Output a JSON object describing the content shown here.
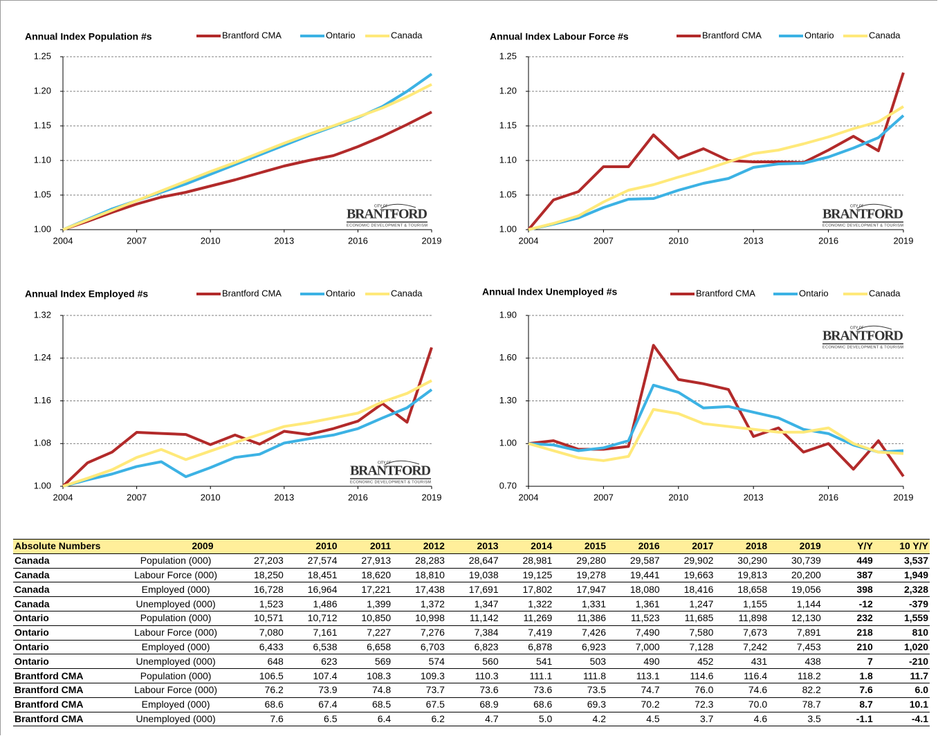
{
  "chart_data": [
    {
      "type": "line",
      "title": "Annual Index Population #s",
      "x": [
        2004,
        2005,
        2006,
        2007,
        2008,
        2009,
        2010,
        2011,
        2012,
        2013,
        2014,
        2015,
        2016,
        2017,
        2018,
        2019
      ],
      "xlim": [
        2004,
        2019
      ],
      "xticks": [
        2004,
        2007,
        2010,
        2013,
        2016,
        2019
      ],
      "ylim": [
        1,
        1.25
      ],
      "yticks": [
        {
          "value": 1,
          "label": "1.00"
        },
        1.05,
        {
          "value": 1.1,
          "label": "1.10"
        },
        1.15,
        {
          "value": 1.2,
          "label": "1.20"
        },
        1.25
      ],
      "grid": true,
      "series": [
        {
          "name": "Brantford CMA",
          "color": "#b22a2a",
          "values": [
            1.0,
            1.012,
            1.025,
            1.037,
            1.047,
            1.054,
            1.063,
            1.072,
            1.082,
            1.092,
            1.1,
            1.107,
            1.12,
            1.135,
            1.152,
            1.17
          ]
        },
        {
          "name": "Ontario",
          "color": "#3cb2e4",
          "values": [
            1.0,
            1.015,
            1.03,
            1.042,
            1.054,
            1.066,
            1.08,
            1.094,
            1.108,
            1.122,
            1.136,
            1.149,
            1.162,
            1.178,
            1.2,
            1.225
          ]
        },
        {
          "name": "Canada",
          "color": "#ffe97a",
          "values": [
            1.0,
            1.014,
            1.028,
            1.042,
            1.056,
            1.07,
            1.084,
            1.097,
            1.111,
            1.125,
            1.138,
            1.15,
            1.163,
            1.176,
            1.192,
            1.21
          ]
        }
      ]
    },
    {
      "type": "line",
      "title": "Annual Index Labour Force #s",
      "x": [
        2004,
        2005,
        2006,
        2007,
        2008,
        2009,
        2010,
        2011,
        2012,
        2013,
        2014,
        2015,
        2016,
        2017,
        2018,
        2019
      ],
      "xlim": [
        2004,
        2019
      ],
      "xticks": [
        2004,
        2007,
        2010,
        2013,
        2016,
        2019
      ],
      "ylim": [
        1,
        1.25
      ],
      "yticks": [
        {
          "value": 1,
          "label": "1.00"
        },
        1.05,
        {
          "value": 1.1,
          "label": "1.10"
        },
        1.15,
        {
          "value": 1.2,
          "label": "1.20"
        },
        1.25
      ],
      "grid": true,
      "series": [
        {
          "name": "Brantford CMA",
          "color": "#b22a2a",
          "values": [
            1.0,
            1.043,
            1.055,
            1.091,
            1.091,
            1.137,
            1.103,
            1.117,
            1.1,
            1.098,
            1.098,
            1.097,
            1.115,
            1.135,
            1.114,
            1.227
          ]
        },
        {
          "name": "Ontario",
          "color": "#3cb2e4",
          "values": [
            1.0,
            1.008,
            1.017,
            1.032,
            1.044,
            1.045,
            1.057,
            1.067,
            1.074,
            1.09,
            1.095,
            1.096,
            1.105,
            1.118,
            1.133,
            1.165
          ]
        },
        {
          "name": "Canada",
          "color": "#ffe97a",
          "values": [
            1.0,
            1.009,
            1.02,
            1.04,
            1.057,
            1.065,
            1.076,
            1.086,
            1.098,
            1.11,
            1.115,
            1.124,
            1.134,
            1.146,
            1.156,
            1.178
          ]
        }
      ]
    },
    {
      "type": "line",
      "title": "Annual Index Employed #s",
      "x": [
        2004,
        2005,
        2006,
        2007,
        2008,
        2009,
        2010,
        2011,
        2012,
        2013,
        2014,
        2015,
        2016,
        2017,
        2018,
        2019
      ],
      "xlim": [
        2004,
        2019
      ],
      "xticks": [
        2004,
        2007,
        2010,
        2013,
        2016,
        2019
      ],
      "ylim": [
        1,
        1.32
      ],
      "yticks": [
        {
          "value": 1,
          "label": "1.00"
        },
        1.08,
        1.16,
        1.24,
        1.32
      ],
      "grid": true,
      "series": [
        {
          "name": "Brantford CMA",
          "color": "#b22a2a",
          "values": [
            1.0,
            1.044,
            1.064,
            1.101,
            1.099,
            1.097,
            1.078,
            1.096,
            1.079,
            1.103,
            1.097,
            1.108,
            1.122,
            1.155,
            1.12,
            1.26
          ]
        },
        {
          "name": "Ontario",
          "color": "#3cb2e4",
          "values": [
            1.0,
            1.012,
            1.023,
            1.037,
            1.046,
            1.018,
            1.035,
            1.054,
            1.06,
            1.081,
            1.089,
            1.096,
            1.108,
            1.128,
            1.147,
            1.181
          ]
        },
        {
          "name": "Canada",
          "color": "#ffe97a",
          "values": [
            1.0,
            1.015,
            1.031,
            1.054,
            1.069,
            1.05,
            1.066,
            1.082,
            1.097,
            1.112,
            1.119,
            1.128,
            1.137,
            1.158,
            1.174,
            1.198
          ]
        }
      ]
    },
    {
      "type": "line",
      "title": "Annual Index Unemployed #s",
      "x": [
        2004,
        2005,
        2006,
        2007,
        2008,
        2009,
        2010,
        2011,
        2012,
        2013,
        2014,
        2015,
        2016,
        2017,
        2018,
        2019
      ],
      "xlim": [
        2004,
        2019
      ],
      "xticks": [
        2004,
        2007,
        2010,
        2013,
        2016,
        2019
      ],
      "ylim": [
        0.7,
        1.9
      ],
      "yticks": [
        {
          "value": 0.7,
          "label": "0.70"
        },
        {
          "value": 1,
          "label": "1.00"
        },
        {
          "value": 1.3,
          "label": "1.30"
        },
        {
          "value": 1.6,
          "label": "1.60"
        },
        {
          "value": 1.9,
          "label": "1.90"
        }
      ],
      "grid": true,
      "series": [
        {
          "name": "Brantford CMA",
          "color": "#b22a2a",
          "values": [
            1.0,
            1.02,
            0.96,
            0.96,
            0.98,
            1.69,
            1.45,
            1.42,
            1.38,
            1.05,
            1.11,
            0.94,
            1.0,
            0.82,
            1.02,
            0.77
          ]
        },
        {
          "name": "Ontario",
          "color": "#3cb2e4",
          "values": [
            1.0,
            0.99,
            0.95,
            0.97,
            1.02,
            1.41,
            1.36,
            1.25,
            1.26,
            1.22,
            1.18,
            1.1,
            1.07,
            0.99,
            0.94,
            0.95
          ]
        },
        {
          "name": "Canada",
          "color": "#ffe97a",
          "values": [
            1.0,
            0.95,
            0.9,
            0.88,
            0.91,
            1.24,
            1.21,
            1.14,
            1.12,
            1.1,
            1.08,
            1.08,
            1.11,
            1.0,
            0.94,
            0.93
          ]
        }
      ]
    }
  ],
  "logo": {
    "city": "CITY OF",
    "name": "BRANTFORD",
    "tag": "ECONOMIC DEVELOPMENT & TOURISM"
  },
  "table": {
    "header": [
      "Absolute Numbers",
      "2009",
      "2010",
      "2011",
      "2012",
      "2013",
      "2014",
      "2015",
      "2016",
      "2017",
      "2018",
      "2019",
      "Y/Y",
      "10 Y/Y"
    ],
    "rows": [
      [
        "Canada",
        "Population (000)",
        "27,203",
        "27,574",
        "27,913",
        "28,283",
        "28,647",
        "28,981",
        "29,280",
        "29,587",
        "29,902",
        "30,290",
        "30,739",
        "449",
        "3,537"
      ],
      [
        "Canada",
        "Labour Force (000)",
        "18,250",
        "18,451",
        "18,620",
        "18,810",
        "19,038",
        "19,125",
        "19,278",
        "19,441",
        "19,663",
        "19,813",
        "20,200",
        "387",
        "1,949"
      ],
      [
        "Canada",
        "Employed (000)",
        "16,728",
        "16,964",
        "17,221",
        "17,438",
        "17,691",
        "17,802",
        "17,947",
        "18,080",
        "18,416",
        "18,658",
        "19,056",
        "398",
        "2,328"
      ],
      [
        "Canada",
        "Unemployed (000)",
        "1,523",
        "1,486",
        "1,399",
        "1,372",
        "1,347",
        "1,322",
        "1,331",
        "1,361",
        "1,247",
        "1,155",
        "1,144",
        "-12",
        "-379"
      ],
      [
        "Ontario",
        "Population (000)",
        "10,571",
        "10,712",
        "10,850",
        "10,998",
        "11,142",
        "11,269",
        "11,386",
        "11,523",
        "11,685",
        "11,898",
        "12,130",
        "232",
        "1,559"
      ],
      [
        "Ontario",
        "Labour Force (000)",
        "7,080",
        "7,161",
        "7,227",
        "7,276",
        "7,384",
        "7,419",
        "7,426",
        "7,490",
        "7,580",
        "7,673",
        "7,891",
        "218",
        "810"
      ],
      [
        "Ontario",
        "Employed (000)",
        "6,433",
        "6,538",
        "6,658",
        "6,703",
        "6,823",
        "6,878",
        "6,923",
        "7,000",
        "7,128",
        "7,242",
        "7,453",
        "210",
        "1,020"
      ],
      [
        "Ontario",
        "Unemployed (000)",
        "648",
        "623",
        "569",
        "574",
        "560",
        "541",
        "503",
        "490",
        "452",
        "431",
        "438",
        "7",
        "-210"
      ],
      [
        "Brantford CMA",
        "Population (000)",
        "106.5",
        "107.4",
        "108.3",
        "109.3",
        "110.3",
        "111.1",
        "111.8",
        "113.1",
        "114.6",
        "116.4",
        "118.2",
        "1.8",
        "11.7"
      ],
      [
        "Brantford CMA",
        "Labour Force (000)",
        "76.2",
        "73.9",
        "74.8",
        "73.7",
        "73.6",
        "73.6",
        "73.5",
        "74.7",
        "76.0",
        "74.6",
        "82.2",
        "7.6",
        "6.0"
      ],
      [
        "Brantford CMA",
        "Employed (000)",
        "68.6",
        "67.4",
        "68.5",
        "67.5",
        "68.9",
        "68.6",
        "69.3",
        "70.2",
        "72.3",
        "70.0",
        "78.7",
        "8.7",
        "10.1"
      ],
      [
        "Brantford CMA",
        "Unemployed (000)",
        "7.6",
        "6.5",
        "6.4",
        "6.2",
        "4.7",
        "5.0",
        "4.2",
        "4.5",
        "3.7",
        "4.6",
        "3.5",
        "-1.1",
        "-4.1"
      ]
    ]
  }
}
